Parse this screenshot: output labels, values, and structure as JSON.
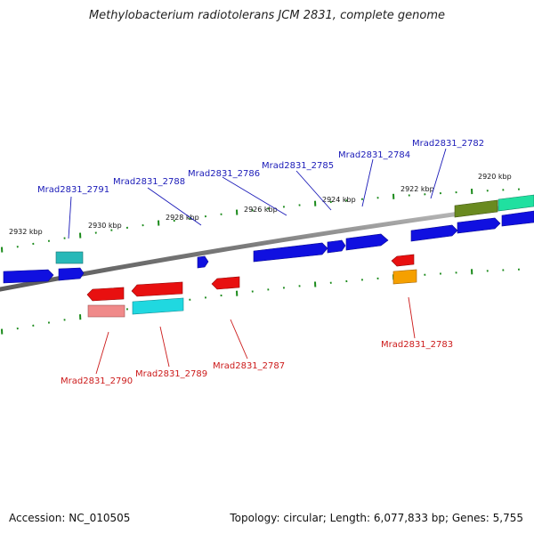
{
  "header": {
    "title": "Methylobacterium radiotolerans JCM 2831, complete genome"
  },
  "footer": {
    "accession": "Accession: NC_010505",
    "topology": "Topology: circular; Length: 6,077,833 bp; Genes: 5,755"
  },
  "scale_labels": [
    "2932 kbp",
    "2930 kbp",
    "2928 kbp",
    "2926 kbp",
    "2924 kbp",
    "2922 kbp",
    "2920 kbp"
  ],
  "genes_top_labels": [
    "Mrad2831_2791",
    "Mrad2831_2788",
    "Mrad2831_2786",
    "Mrad2831_2785",
    "Mrad2831_2784",
    "Mrad2831_2782"
  ],
  "genes_bottom_labels": [
    "Mrad2831_2790",
    "Mrad2831_2789",
    "Mrad2831_2787",
    "Mrad2831_2783"
  ],
  "colors": {
    "blue": "#1010e0",
    "red": "#e81010",
    "pink": "#f08a8a",
    "cyan": "#20d8e0",
    "teal": "#28b8b8",
    "olive": "#6a8a20",
    "green_cyan": "#20e0a0",
    "orange": "#f5a000",
    "backbone": "#888888",
    "tick": "#1a8a1a"
  }
}
